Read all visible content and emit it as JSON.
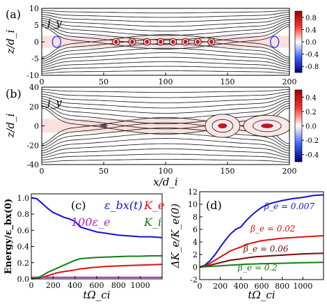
{
  "chart_data": [
    {
      "id": "a",
      "type": "heatmap",
      "panel_label": "(a)",
      "field_label": "j_y",
      "ylabel": "z/d_i",
      "xlim": [
        0,
        200
      ],
      "ylim": [
        -10,
        10
      ],
      "xticks": [
        0,
        50,
        100,
        150,
        200
      ],
      "yticks": [
        10,
        5,
        0,
        -5,
        -10
      ],
      "colorbar_ticks": [
        0.8,
        0.4,
        0.0,
        -0.4,
        -0.8
      ],
      "colorbar_range": [
        -1.0,
        1.0
      ],
      "islands_x": [
        60,
        73,
        85,
        96,
        106,
        116,
        126,
        137
      ],
      "xpoint_edges_x": [
        12,
        188
      ]
    },
    {
      "id": "b",
      "type": "heatmap",
      "panel_label": "(b)",
      "field_label": "j_y",
      "xlabel": "x/d_i",
      "ylabel": "z/d_i",
      "xlim": [
        0,
        200
      ],
      "ylim": [
        -40,
        40
      ],
      "xticks": [
        0,
        50,
        100,
        150,
        200
      ],
      "yticks": [
        40,
        20,
        0,
        -20,
        -40
      ],
      "colorbar_ticks": [
        0.4,
        0.2,
        0.0,
        -0.2,
        -0.4
      ],
      "colorbar_range": [
        -0.5,
        0.5
      ],
      "islands": [
        {
          "x": 50,
          "z": 0,
          "wx": 3,
          "wz": 1.5
        },
        {
          "x": 146,
          "z": 0,
          "wx": 14,
          "wz": 12
        },
        {
          "x": 182,
          "z": 0,
          "wx": 19,
          "wz": 11
        }
      ]
    },
    {
      "id": "c",
      "type": "line",
      "panel_label": "(c)",
      "xlabel": "tΩ_ci",
      "ylabel": "Energy/ε_bx(0)",
      "xlim": [
        0,
        1200
      ],
      "ylim": [
        0,
        1.05
      ],
      "xticks": [
        0,
        200,
        400,
        600,
        800,
        1000
      ],
      "yticks": [
        0.0,
        0.2,
        0.4,
        0.6,
        0.8,
        1.0
      ],
      "x": [
        0,
        50,
        100,
        150,
        200,
        250,
        300,
        350,
        400,
        450,
        500,
        550,
        600,
        700,
        800,
        900,
        1000,
        1100,
        1200
      ],
      "series": [
        {
          "name": "ε_bx(t)",
          "color": "#1010e0",
          "values": [
            1.0,
            0.99,
            0.93,
            0.87,
            0.82,
            0.79,
            0.76,
            0.74,
            0.71,
            0.64,
            0.62,
            0.6,
            0.58,
            0.56,
            0.54,
            0.53,
            0.52,
            0.52,
            0.51
          ]
        },
        {
          "name": "K_e",
          "color": "#e01010",
          "values": [
            0.0,
            0.005,
            0.02,
            0.04,
            0.06,
            0.08,
            0.09,
            0.1,
            0.11,
            0.125,
            0.13,
            0.14,
            0.145,
            0.155,
            0.16,
            0.165,
            0.17,
            0.175,
            0.18
          ]
        },
        {
          "name": "100ε_e",
          "color": "#c020c0",
          "values": [
            0.02,
            0.02,
            0.02,
            0.02,
            0.02,
            0.02,
            0.02,
            0.02,
            0.02,
            0.02,
            0.02,
            0.02,
            0.02,
            0.02,
            0.02,
            0.02,
            0.02,
            0.02,
            0.02
          ]
        },
        {
          "name": "K_i",
          "color": "#108010",
          "values": [
            0.0,
            0.01,
            0.04,
            0.08,
            0.11,
            0.14,
            0.17,
            0.2,
            0.23,
            0.25,
            0.255,
            0.26,
            0.265,
            0.27,
            0.275,
            0.28,
            0.28,
            0.285,
            0.285
          ]
        }
      ]
    },
    {
      "id": "d",
      "type": "line",
      "panel_label": "(d)",
      "xlabel": "tΩ_ci",
      "ylabel": "ΔK_e/K_e(0)",
      "xlim": [
        0,
        1200
      ],
      "ylim": [
        -2,
        12
      ],
      "xticks": [
        0,
        200,
        400,
        600,
        800,
        1000
      ],
      "yticks": [
        -2,
        0,
        2,
        4,
        6,
        8,
        10,
        12
      ],
      "x": [
        0,
        50,
        100,
        150,
        200,
        250,
        300,
        350,
        400,
        450,
        500,
        550,
        600,
        650,
        700,
        800,
        900,
        1000,
        1100,
        1200
      ],
      "series": [
        {
          "name": "β_e = 0.007",
          "color": "#1010e0",
          "values": [
            0.0,
            0.3,
            1.0,
            2.0,
            3.2,
            4.3,
            5.3,
            6.0,
            6.4,
            7.4,
            8.2,
            8.9,
            9.5,
            9.9,
            10.2,
            10.6,
            10.9,
            11.1,
            11.4,
            11.5
          ]
        },
        {
          "name": "β_e = 0.02",
          "color": "#e01010",
          "values": [
            0.0,
            0.2,
            0.6,
            1.1,
            1.6,
            2.1,
            2.6,
            2.9,
            3.2,
            3.6,
            3.8,
            4.0,
            4.2,
            4.3,
            4.4,
            4.6,
            4.7,
            4.8,
            4.9,
            5.0
          ]
        },
        {
          "name": "β_e = 0.06",
          "color": "#7a0a0a",
          "values": [
            0.0,
            0.1,
            0.3,
            0.5,
            0.7,
            0.9,
            1.1,
            1.2,
            1.3,
            1.45,
            1.55,
            1.65,
            1.7,
            1.75,
            1.8,
            1.9,
            2.0,
            2.1,
            2.15,
            2.2
          ]
        },
        {
          "name": "β_e = 0.2",
          "color": "#108010",
          "values": [
            0.0,
            0.05,
            0.1,
            0.15,
            0.2,
            0.25,
            0.3,
            0.35,
            0.4,
            0.45,
            0.48,
            0.5,
            0.53,
            0.55,
            0.57,
            0.6,
            0.65,
            0.7,
            0.72,
            0.75
          ]
        }
      ]
    }
  ]
}
